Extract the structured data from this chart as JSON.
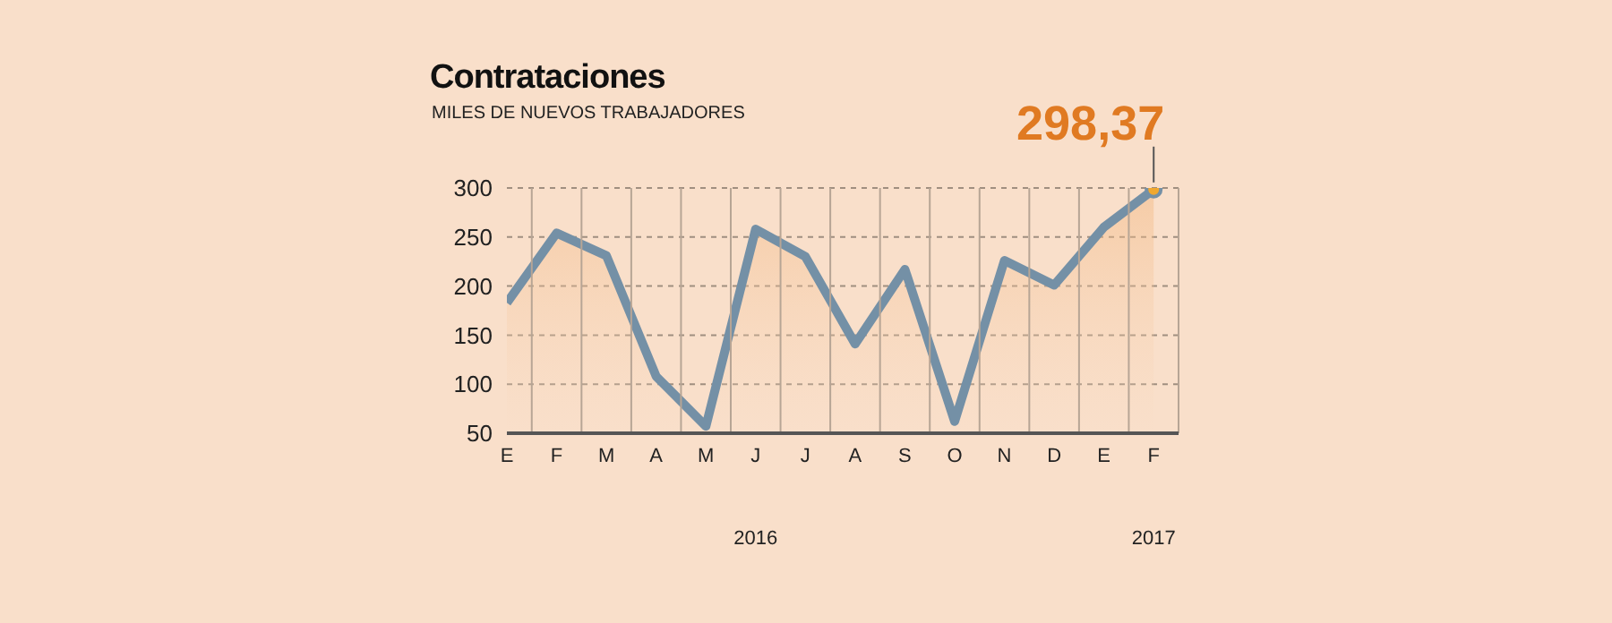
{
  "chart_data": {
    "type": "area",
    "title": "Contrataciones",
    "subtitle": "MILES DE NUEVOS TRABAJADORES",
    "categories": [
      "E",
      "F",
      "M",
      "A",
      "M",
      "J",
      "J",
      "A",
      "S",
      "O",
      "N",
      "D",
      "E",
      "F"
    ],
    "series": [
      {
        "color": "#7490a6",
        "values": [
          183,
          254,
          231,
          108,
          57,
          258,
          230,
          141,
          217,
          62,
          226,
          201,
          260,
          298.37
        ],
        "value_labels": [
          null,
          null,
          null,
          null,
          null,
          null,
          null,
          null,
          null,
          null,
          null,
          null,
          null,
          "298,37"
        ]
      }
    ],
    "annotations": [
      "2016",
      "2017"
    ],
    "ylim": [
      50,
      300
    ],
    "yticks": [
      50,
      100,
      150,
      200,
      250,
      300
    ],
    "grid": true,
    "marker": "none",
    "line_style": "solid"
  }
}
